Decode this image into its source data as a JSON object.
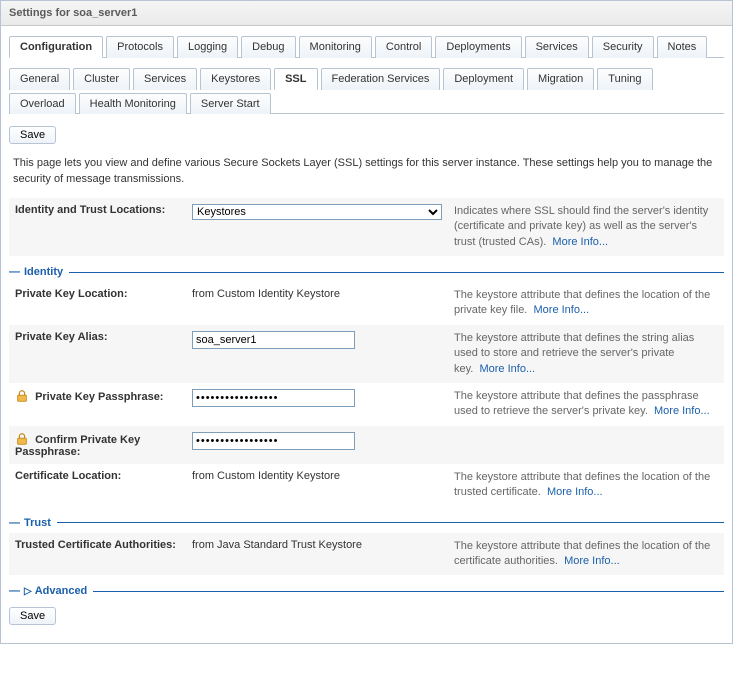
{
  "header": {
    "title": "Settings for soa_server1"
  },
  "tabs_main": [
    {
      "label": "Configuration",
      "active": true
    },
    {
      "label": "Protocols"
    },
    {
      "label": "Logging"
    },
    {
      "label": "Debug"
    },
    {
      "label": "Monitoring"
    },
    {
      "label": "Control"
    },
    {
      "label": "Deployments"
    },
    {
      "label": "Services"
    },
    {
      "label": "Security"
    },
    {
      "label": "Notes"
    }
  ],
  "tabs_sub": [
    {
      "label": "General"
    },
    {
      "label": "Cluster"
    },
    {
      "label": "Services"
    },
    {
      "label": "Keystores"
    },
    {
      "label": "SSL",
      "active": true
    },
    {
      "label": "Federation Services"
    },
    {
      "label": "Deployment"
    },
    {
      "label": "Migration"
    },
    {
      "label": "Tuning"
    },
    {
      "label": "Overload"
    },
    {
      "label": "Health Monitoring"
    },
    {
      "label": "Server Start"
    }
  ],
  "buttons": {
    "save": "Save"
  },
  "intro": "This page lets you view and define various Secure Sockets Layer (SSL) settings for this server instance. These settings help you to manage the security of message transmissions.",
  "moreInfo": "More Info...",
  "fields": {
    "identityTrustLocations": {
      "label": "Identity and Trust Locations:",
      "options": [
        "Keystores"
      ],
      "value": "Keystores",
      "desc": "Indicates where SSL should find the server's identity (certificate and private key) as well as the server's trust (trusted CAs)."
    }
  },
  "sections": {
    "identity": "Identity",
    "trust": "Trust",
    "advanced": "Advanced"
  },
  "identity": {
    "pkLocation": {
      "label": "Private Key Location:",
      "value": "from Custom Identity Keystore",
      "desc": "The keystore attribute that defines the location of the private key file."
    },
    "pkAlias": {
      "label": "Private Key Alias:",
      "value": "soa_server1",
      "desc": "The keystore attribute that defines the string alias used to store and retrieve the server's private key."
    },
    "pkPass": {
      "label": "Private Key Passphrase:",
      "value": "•••••••••••••••••",
      "desc": "The keystore attribute that defines the passphrase used to retrieve the server's private key."
    },
    "pkPassConfirm": {
      "label": "Confirm Private Key Passphrase:",
      "value": "•••••••••••••••••"
    },
    "certLocation": {
      "label": "Certificate Location:",
      "value": "from Custom Identity Keystore",
      "desc": "The keystore attribute that defines the location of the trusted certificate."
    }
  },
  "trust": {
    "tca": {
      "label": "Trusted Certificate Authorities:",
      "value": "from Java Standard Trust Keystore",
      "desc": "The keystore attribute that defines the location of the certificate authorities."
    }
  }
}
